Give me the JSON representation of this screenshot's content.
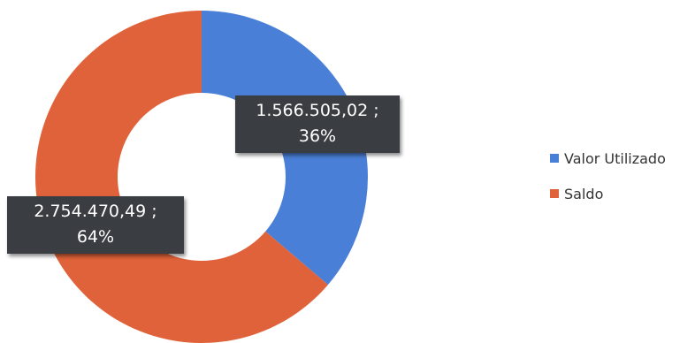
{
  "chart_data": {
    "type": "pie",
    "variant": "donut",
    "categories": [
      "Valor Utilizado",
      "Saldo"
    ],
    "values": [
      1566505.02,
      2754470.49
    ],
    "percentages": [
      36,
      64
    ],
    "data_labels": [
      {
        "value": "1.566.505,02 ;",
        "percent": "36%"
      },
      {
        "value": "2.754.470,49 ;",
        "percent": "64%"
      }
    ],
    "colors": [
      "#4a7fd8",
      "#e0623a"
    ],
    "legend_position": "right"
  }
}
